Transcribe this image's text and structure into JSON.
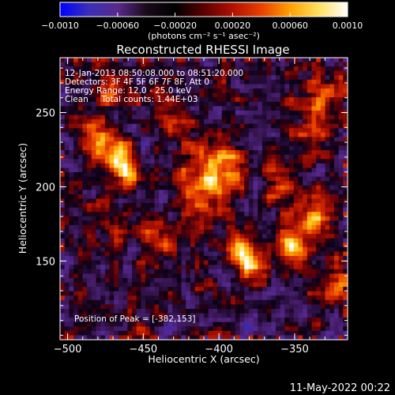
{
  "chart_data": {
    "type": "heatmap",
    "title": "Reconstructed RHESSI Image",
    "xlabel": "Heliocentric X (arcsec)",
    "ylabel": "Heliocentric Y (arcsec)",
    "xlim": [
      -505,
      -315
    ],
    "ylim": [
      97,
      287
    ],
    "xticks": [
      -500,
      -450,
      -400,
      -350
    ],
    "yticks": [
      150,
      200,
      250
    ],
    "colorbar": {
      "min": -0.001,
      "max": 0.001,
      "ticks": [
        "-0.0010",
        "-0.00060",
        "-0.00020",
        "0.00020",
        "0.00060",
        "0.0010"
      ],
      "unit_label": "(photons cm⁻² s⁻¹ asec⁻²)",
      "stops": [
        "#0000ff",
        "#3a2fb8",
        "#5a2a8c",
        "#1a0a1a",
        "#000000",
        "#5a0000",
        "#b01000",
        "#e84000",
        "#ffa000",
        "#ffe060",
        "#ffffff"
      ]
    },
    "annotations": [
      "12-Jan-2013 08:50:08.000 to 08:51:20.000",
      "Detectors: 3F 4F 5F 6F 7F 8F, Att 0",
      "Energy Range: 12.0 - 25.0 keV",
      "Clean     Total counts: 1.44E+03"
    ],
    "peak_label": "Position of Peak = [-382,153]",
    "peak": [
      -382,
      153
    ],
    "hot_spots": [
      {
        "x": -408,
        "y": 203,
        "value": 0.00095
      },
      {
        "x": -395,
        "y": 215,
        "value": 0.0008
      },
      {
        "x": -382,
        "y": 153,
        "value": 0.001
      },
      {
        "x": -350,
        "y": 158,
        "value": 0.0009
      },
      {
        "x": -465,
        "y": 215,
        "value": 0.00085
      },
      {
        "x": -478,
        "y": 230,
        "value": 0.0006
      },
      {
        "x": -330,
        "y": 262,
        "value": 0.0007
      },
      {
        "x": -340,
        "y": 240,
        "value": 0.0005
      },
      {
        "x": -470,
        "y": 265,
        "value": 0.0006
      },
      {
        "x": -425,
        "y": 240,
        "value": 0.00045
      },
      {
        "x": -440,
        "y": 170,
        "value": 0.0004
      },
      {
        "x": -420,
        "y": 190,
        "value": 0.0005
      },
      {
        "x": -335,
        "y": 180,
        "value": 0.0006
      },
      {
        "x": -320,
        "y": 135,
        "value": 0.0004
      },
      {
        "x": -360,
        "y": 205,
        "value": 0.0004
      }
    ]
  },
  "footer": {
    "timestamp": "11-May-2022 00:22"
  }
}
